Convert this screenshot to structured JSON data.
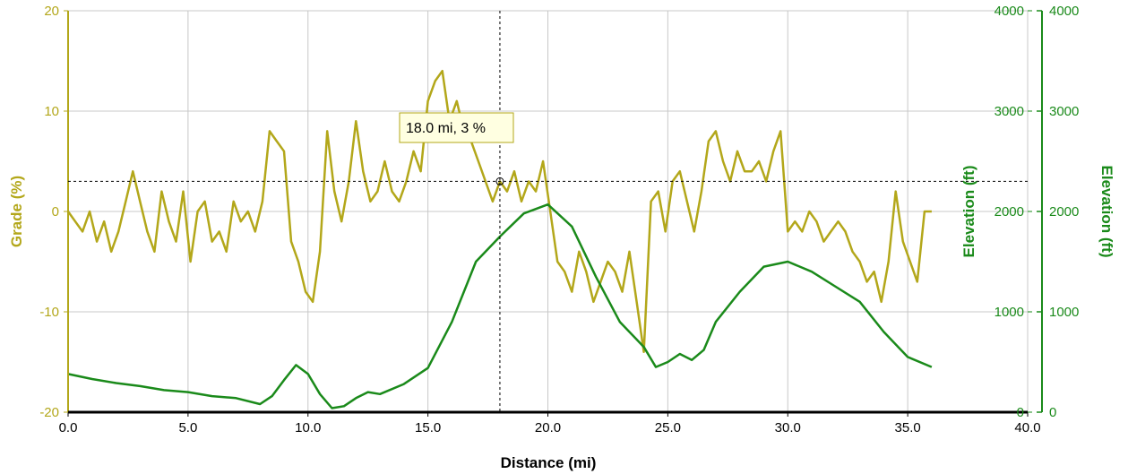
{
  "colors": {
    "grade": "#b3a71a",
    "elevation": "#1a8a1a",
    "grid": "#c8c8c8",
    "axis": "#000000",
    "tooltip_bg": "#ffffe1",
    "tooltip_border": "#b3a71a"
  },
  "tooltip": {
    "text": "18.0 mi, 3 %"
  },
  "chart_data": {
    "type": "line",
    "xlabel": "Distance (mi)",
    "ylabel": "Grade (%)",
    "y2label": "Elevation (ft)",
    "y3label": "Elevation (ft)",
    "xlim": [
      0,
      40
    ],
    "ylim": [
      -20,
      20
    ],
    "y2lim": [
      0,
      4000
    ],
    "grid": true,
    "x_ticks": [
      "0.0",
      "5.0",
      "10.0",
      "15.0",
      "20.0",
      "25.0",
      "30.0",
      "35.0",
      "40.0"
    ],
    "y_ticks": [
      "20",
      "10",
      "0",
      "-10",
      "-20"
    ],
    "y2_ticks": [
      "4000",
      "3000",
      "2000",
      "1000",
      "0"
    ],
    "y3_ticks": [
      "4000",
      "3000",
      "2000",
      "1000",
      "0"
    ],
    "crosshair": {
      "x": 18.0,
      "y": 3
    },
    "series": [
      {
        "name": "Grade (%)",
        "axis": "left",
        "x": [
          0,
          0.3,
          0.6,
          0.9,
          1.2,
          1.5,
          1.8,
          2.1,
          2.4,
          2.7,
          3.0,
          3.3,
          3.6,
          3.9,
          4.2,
          4.5,
          4.8,
          5.1,
          5.4,
          5.7,
          6.0,
          6.3,
          6.6,
          6.9,
          7.2,
          7.5,
          7.8,
          8.1,
          8.4,
          8.7,
          9.0,
          9.3,
          9.6,
          9.9,
          10.2,
          10.5,
          10.8,
          11.1,
          11.4,
          11.7,
          12.0,
          12.3,
          12.6,
          12.9,
          13.2,
          13.5,
          13.8,
          14.1,
          14.4,
          14.7,
          15.0,
          15.3,
          15.6,
          15.9,
          16.2,
          16.5,
          16.8,
          17.1,
          17.4,
          17.7,
          18.0,
          18.3,
          18.6,
          18.9,
          19.2,
          19.5,
          19.8,
          20.1,
          20.4,
          20.7,
          21.0,
          21.3,
          21.6,
          21.9,
          22.2,
          22.5,
          22.8,
          23.1,
          23.4,
          23.7,
          24.0,
          24.3,
          24.6,
          24.9,
          25.2,
          25.5,
          25.8,
          26.1,
          26.4,
          26.7,
          27.0,
          27.3,
          27.6,
          27.9,
          28.2,
          28.5,
          28.8,
          29.1,
          29.4,
          29.7,
          30.0,
          30.3,
          30.6,
          30.9,
          31.2,
          31.5,
          31.8,
          32.1,
          32.4,
          32.7,
          33.0,
          33.3,
          33.6,
          33.9,
          34.2,
          34.5,
          34.8,
          35.1,
          35.4,
          35.7,
          36.0
        ],
        "values": [
          0,
          -1,
          -2,
          0,
          -3,
          -1,
          -4,
          -2,
          1,
          4,
          1,
          -2,
          -4,
          2,
          -1,
          -3,
          2,
          -5,
          0,
          1,
          -3,
          -2,
          -4,
          1,
          -1,
          0,
          -2,
          1,
          8,
          7,
          6,
          -3,
          -5,
          -8,
          -9,
          -4,
          8,
          2,
          -1,
          3,
          9,
          4,
          1,
          2,
          5,
          2,
          1,
          3,
          6,
          4,
          11,
          13,
          14,
          9,
          11,
          8,
          7,
          5,
          3,
          1,
          3,
          2,
          4,
          1,
          3,
          2,
          5,
          0,
          -5,
          -6,
          -8,
          -4,
          -6,
          -9,
          -7,
          -5,
          -6,
          -8,
          -4,
          -9,
          -14,
          1,
          2,
          -2,
          3,
          4,
          1,
          -2,
          2,
          7,
          8,
          5,
          3,
          6,
          4,
          4,
          5,
          3,
          6,
          8,
          -2,
          -1,
          -2,
          0,
          -1,
          -3,
          -2,
          -1,
          -2,
          -4,
          -5,
          -7,
          -6,
          -9,
          -5,
          2,
          -3,
          -5,
          -7,
          0,
          0
        ]
      },
      {
        "name": "Elevation (ft)",
        "axis": "right",
        "x": [
          0,
          1,
          2,
          3,
          4,
          5,
          6,
          7,
          8,
          8.5,
          9,
          9.5,
          10,
          10.5,
          11,
          11.5,
          12,
          12.5,
          13,
          14,
          15,
          16,
          17,
          18,
          19,
          20,
          21,
          22,
          23,
          24,
          24.5,
          25,
          25.5,
          26,
          26.5,
          27,
          28,
          29,
          30,
          31,
          32,
          33,
          34,
          35,
          36
        ],
        "values": [
          380,
          330,
          290,
          260,
          220,
          200,
          160,
          140,
          80,
          160,
          320,
          470,
          380,
          180,
          40,
          60,
          140,
          200,
          180,
          280,
          440,
          900,
          1500,
          1750,
          1980,
          2070,
          1850,
          1350,
          900,
          650,
          450,
          500,
          580,
          520,
          620,
          900,
          1200,
          1450,
          1500,
          1400,
          1250,
          1100,
          800,
          550,
          450
        ]
      }
    ]
  }
}
